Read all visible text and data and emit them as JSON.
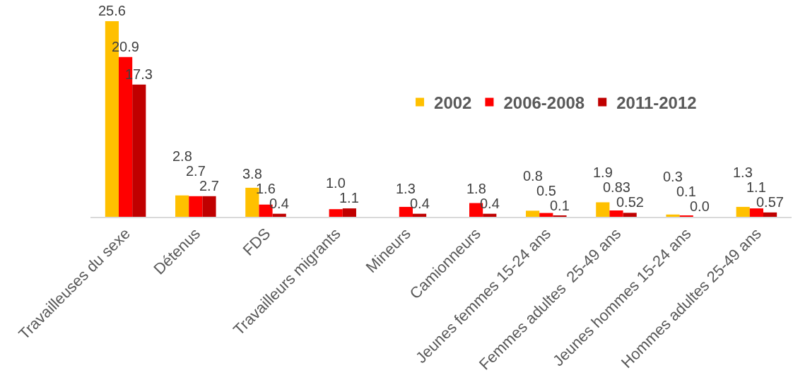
{
  "chart_data": {
    "type": "bar",
    "categories": [
      "Travailleuses du sexe",
      "Détenus",
      "FDS",
      "Travailleurs migrants",
      "Mineurs",
      "Camionneurs",
      "Jeunes femmes 15-24 ans",
      "Femmes adultes  25-49 ans",
      "Jeunes hommes 15-24 ans",
      "Hommes adultes 25-49 ans"
    ],
    "series": [
      {
        "name": "2002",
        "color": "#ffc000",
        "values": [
          25.6,
          2.8,
          3.8,
          null,
          null,
          null,
          0.8,
          1.9,
          0.3,
          1.3
        ],
        "value_labels": [
          "25.6",
          "2.8",
          "3.8",
          null,
          null,
          null,
          "0.8",
          "1.9",
          "0.3",
          "1.3"
        ]
      },
      {
        "name": "2006-2008",
        "color": "#ff0000",
        "values": [
          20.9,
          2.7,
          1.6,
          1.0,
          1.3,
          1.8,
          0.5,
          0.83,
          0.1,
          1.1
        ],
        "value_labels": [
          "20.9",
          "2.7",
          "1.6",
          "1.0",
          "1.3",
          "1.8",
          "0.5",
          "0.83",
          "0.1",
          "1.1"
        ]
      },
      {
        "name": "2011-2012",
        "color": "#c00000",
        "values": [
          17.3,
          2.7,
          0.4,
          1.1,
          0.4,
          0.4,
          0.1,
          0.52,
          0.0,
          0.57
        ],
        "value_labels": [
          "17.3",
          "2.7",
          "0.4",
          "1.1",
          "0.4",
          "0.4",
          "0.1",
          "0.52",
          "0.0",
          "0.57"
        ]
      }
    ],
    "legend": "top right"
  }
}
